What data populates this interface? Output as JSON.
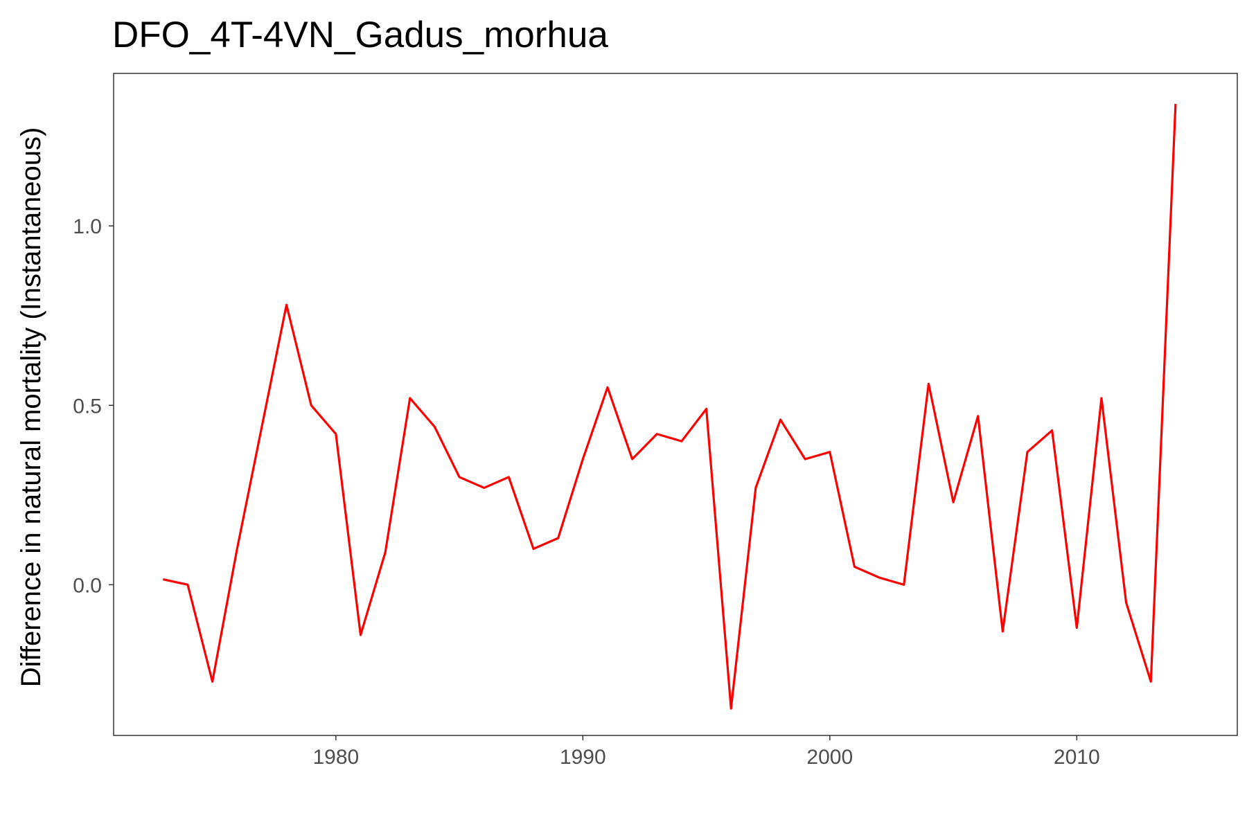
{
  "chart_data": {
    "type": "line",
    "title": "DFO_4T-4VN_Gadus_morhua",
    "xlabel": "",
    "ylabel": "Difference in natural mortality (Instantaneous)",
    "xlim": [
      1971,
      2016.5
    ],
    "ylim": [
      -0.42,
      1.425
    ],
    "x_ticks": [
      1980,
      1990,
      2000,
      2010
    ],
    "y_ticks": [
      0.0,
      0.5,
      1.0
    ],
    "x_tick_labels": [
      "1980",
      "1990",
      "2000",
      "2010"
    ],
    "y_tick_labels": [
      "0.0",
      "0.5",
      "1.0"
    ],
    "grid": false,
    "line_color": "#ff0000",
    "series": [
      {
        "x": [
          1973,
          1974,
          1975,
          1976,
          1977,
          1978,
          1979,
          1980,
          1981,
          1982,
          1983,
          1984,
          1985,
          1986,
          1987,
          1988,
          1989,
          1990,
          1991,
          1992,
          1993,
          1994,
          1995,
          1996,
          1997,
          1998,
          1999,
          2000,
          2001,
          2002,
          2003,
          2004,
          2005,
          2006,
          2007,
          2008,
          2009,
          2010,
          2011,
          2012,
          2013,
          2014
        ],
        "values": [
          0.015,
          0.0,
          -0.27,
          0.1,
          0.44,
          0.78,
          0.5,
          0.42,
          -0.14,
          0.09,
          0.52,
          0.44,
          0.3,
          0.27,
          0.3,
          0.1,
          0.13,
          0.35,
          0.55,
          0.35,
          0.42,
          0.4,
          0.49,
          -0.345,
          0.27,
          0.46,
          0.35,
          0.37,
          0.05,
          0.02,
          0.0,
          0.56,
          0.23,
          0.47,
          -0.13,
          0.37,
          0.43,
          -0.12,
          0.52,
          -0.05,
          -0.27,
          1.34
        ]
      }
    ]
  }
}
